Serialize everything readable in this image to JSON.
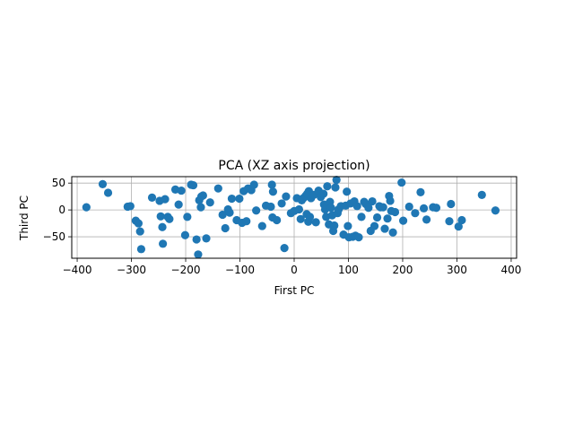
{
  "chart_data": {
    "type": "scatter",
    "title": "PCA (XZ axis projection)",
    "xlabel": "First PC",
    "ylabel": "Third PC",
    "xlim": [
      -410,
      410
    ],
    "ylim": [
      -90,
      62
    ],
    "xticks": [
      -400,
      -300,
      -200,
      -100,
      0,
      100,
      200,
      300,
      400
    ],
    "yticks": [
      -50,
      0,
      50
    ],
    "grid": true,
    "marker_color": "#1f77b4",
    "series": [
      {
        "x": [
          -383,
          -353,
          -343,
          -307,
          -302,
          -292,
          -287,
          -284,
          -282,
          -262,
          -248,
          -246,
          -243,
          -242,
          -238,
          -233,
          -230,
          -219,
          -213,
          -208,
          -201,
          -197,
          -190,
          -186,
          -180,
          -177,
          -175,
          -172,
          -171,
          -168,
          -162,
          -155,
          -140,
          -132,
          -127,
          -122,
          -119,
          -115,
          -106,
          -101,
          -96,
          -93,
          -88,
          -85,
          -79,
          -74,
          -70,
          -59,
          -52,
          -43,
          -41,
          -40,
          -39,
          -32,
          -23,
          -18,
          -15,
          -6,
          0,
          5,
          9,
          12,
          14,
          17,
          21,
          23,
          24,
          26,
          27,
          29,
          31,
          36,
          40,
          45,
          49,
          54,
          55,
          57,
          59,
          61,
          64,
          66,
          68,
          70,
          72,
          74,
          76,
          78,
          80,
          82,
          86,
          91,
          95,
          97,
          99,
          101,
          104,
          108,
          111,
          113,
          116,
          119,
          124,
          129,
          132,
          137,
          141,
          144,
          148,
          153,
          157,
          159,
          164,
          167,
          172,
          175,
          177,
          179,
          182,
          186,
          198,
          201,
          212,
          223,
          233,
          239,
          244,
          256,
          262,
          286,
          289,
          303,
          309,
          346,
          371
        ],
        "y": [
          5,
          48,
          32,
          6,
          7,
          -20,
          -25,
          -40,
          -73,
          23,
          17,
          -12,
          -32,
          -63,
          20,
          -13,
          -17,
          38,
          10,
          36,
          -47,
          -13,
          47,
          46,
          -55,
          -83,
          18,
          5,
          25,
          27,
          -53,
          14,
          40,
          -9,
          -34,
          1,
          -5,
          21,
          -19,
          21,
          -24,
          35,
          -21,
          40,
          37,
          47,
          -1,
          -30,
          8,
          6,
          47,
          -14,
          34,
          -19,
          12,
          -71,
          25,
          -6,
          -2,
          22,
          1,
          -17,
          18,
          22,
          26,
          -8,
          30,
          -22,
          35,
          -13,
          22,
          28,
          -23,
          36,
          24,
          30,
          10,
          1,
          -13,
          44,
          -27,
          15,
          4,
          -10,
          -39,
          -29,
          42,
          56,
          -6,
          1,
          7,
          -46,
          8,
          34,
          -30,
          -51,
          12,
          -50,
          16,
          -48,
          7,
          -51,
          -13,
          15,
          11,
          4,
          -39,
          16,
          -30,
          -14,
          7,
          5,
          5,
          -35,
          -16,
          26,
          17,
          -2,
          -42,
          -4,
          51,
          -20,
          6,
          -6,
          33,
          3,
          -18,
          5,
          4,
          -21,
          11,
          -31,
          -19,
          28,
          -1
        ]
      }
    ]
  }
}
